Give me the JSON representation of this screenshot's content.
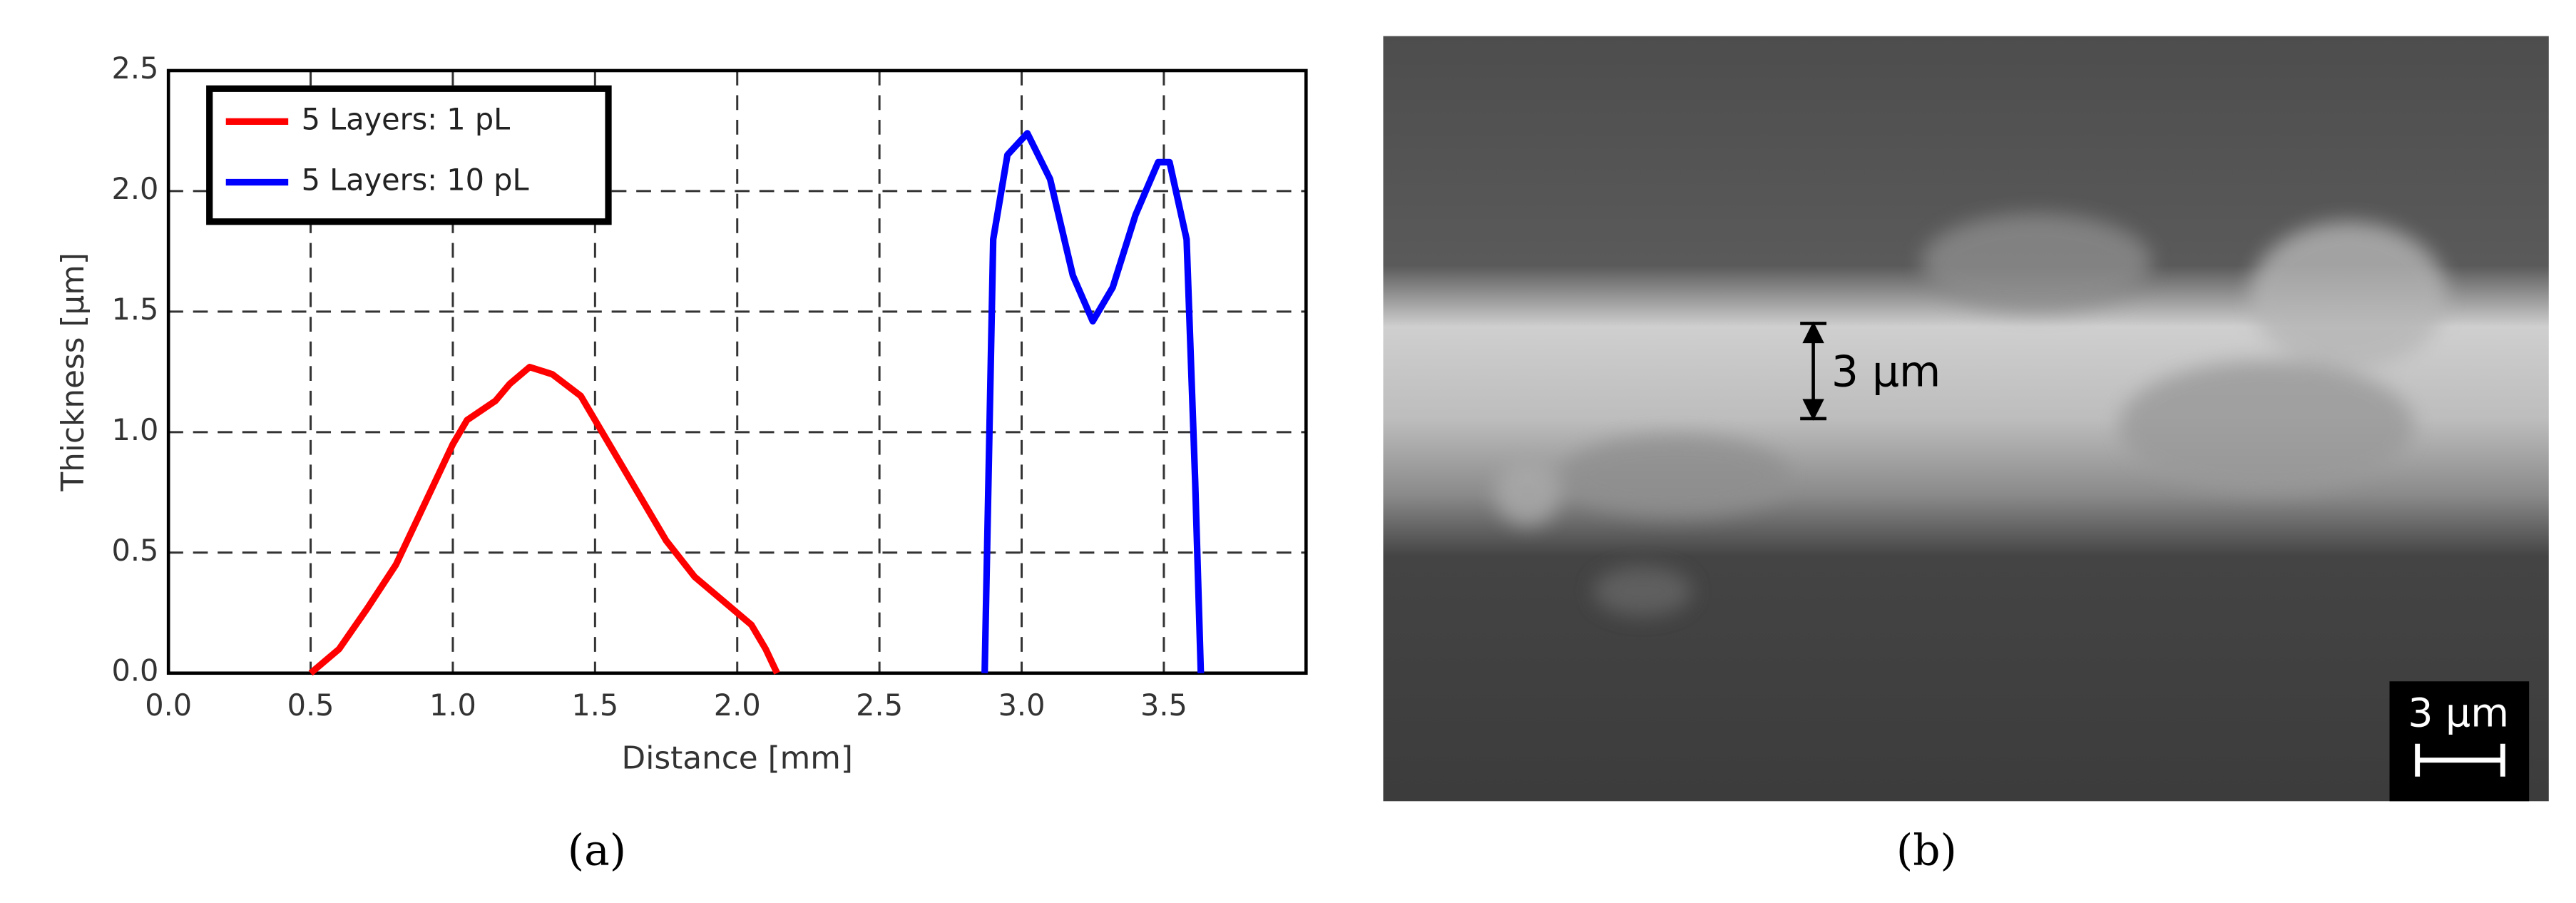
{
  "chart_data": {
    "type": "line",
    "xlabel": "Distance [mm]",
    "ylabel": "Thickness [µm]",
    "xlim": [
      0,
      4
    ],
    "ylim": [
      0,
      2.5
    ],
    "xticks": [
      {
        "value": 0,
        "label": "0.0"
      },
      0.5,
      {
        "value": 1,
        "label": "1.0"
      },
      1.5,
      {
        "value": 2,
        "label": "2.0"
      },
      2.5,
      {
        "value": 3,
        "label": "3.0"
      },
      3.5
    ],
    "yticks": [
      {
        "value": 0,
        "label": "0.0"
      },
      0.5,
      {
        "value": 1,
        "label": "1.0"
      },
      1.5,
      {
        "value": 2,
        "label": "2.0"
      },
      2.5
    ],
    "grid": true,
    "legend": "upper left",
    "series": [
      {
        "name": "5 Layers: 1 pL",
        "color": "#ff0000",
        "x": [
          0.5,
          0.6,
          0.7,
          0.8,
          0.9,
          1.0,
          1.05,
          1.15,
          1.2,
          1.27,
          1.35,
          1.45,
          1.55,
          1.65,
          1.75,
          1.85,
          1.95,
          2.05,
          2.1,
          2.14
        ],
        "values": [
          0,
          0.1,
          0.27,
          0.45,
          0.7,
          0.95,
          1.05,
          1.13,
          1.2,
          1.27,
          1.24,
          1.15,
          0.95,
          0.75,
          0.55,
          0.4,
          0.3,
          0.2,
          0.1,
          0
        ]
      },
      {
        "name": "5 Layers: 10 pL",
        "color": "#0000ff",
        "x": [
          2.87,
          2.9,
          2.95,
          3.02,
          3.1,
          3.18,
          3.25,
          3.32,
          3.4,
          3.48,
          3.52,
          3.58,
          3.61,
          3.63
        ],
        "values": [
          0,
          1.8,
          2.15,
          2.24,
          2.05,
          1.65,
          1.46,
          1.6,
          1.9,
          2.12,
          2.12,
          1.8,
          0.8,
          0
        ]
      }
    ]
  },
  "panels": {
    "a_label": "(a)",
    "b_label": "(b)",
    "b_annotation": "3 µm",
    "b_scale_bar": "3 µm"
  }
}
